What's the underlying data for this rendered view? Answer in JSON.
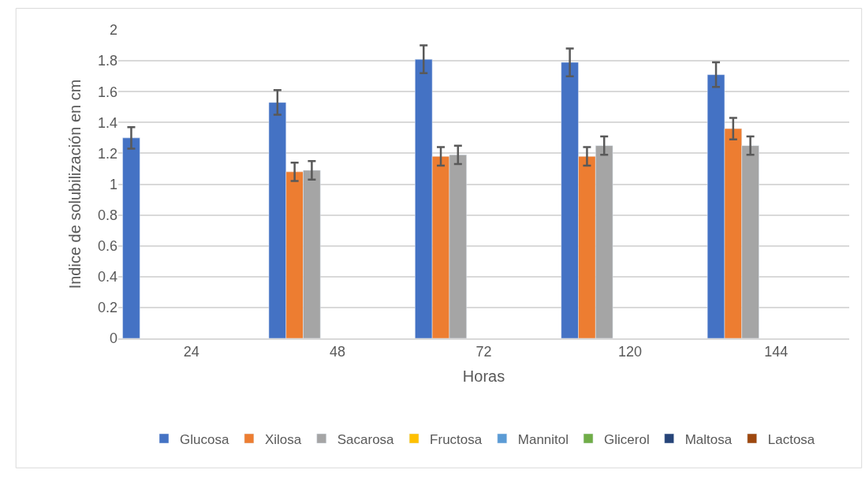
{
  "chart_data": {
    "type": "bar",
    "xlabel": "Horas",
    "ylabel": "Indice de solubilización en cm",
    "categories": [
      "24",
      "48",
      "72",
      "120",
      "144"
    ],
    "series": [
      {
        "name": "Glucosa",
        "color": "#4472c4",
        "values": [
          1.3,
          1.53,
          1.81,
          1.79,
          1.71
        ],
        "errors": [
          0.07,
          0.08,
          0.09,
          0.09,
          0.08
        ]
      },
      {
        "name": "Xilosa",
        "color": "#ed7d31",
        "values": [
          null,
          1.08,
          1.18,
          1.18,
          1.36
        ],
        "errors": [
          null,
          0.06,
          0.06,
          0.06,
          0.07
        ]
      },
      {
        "name": "Sacarosa",
        "color": "#a5a5a5",
        "values": [
          null,
          1.09,
          1.19,
          1.25,
          1.25
        ],
        "errors": [
          null,
          0.06,
          0.06,
          0.06,
          0.06
        ]
      },
      {
        "name": "Fructosa",
        "color": "#ffc000",
        "values": [
          null,
          null,
          null,
          null,
          null
        ]
      },
      {
        "name": "Mannitol",
        "color": "#5b9bd5",
        "values": [
          null,
          null,
          null,
          null,
          null
        ]
      },
      {
        "name": "Glicerol",
        "color": "#70ad47",
        "values": [
          null,
          null,
          null,
          null,
          null
        ]
      },
      {
        "name": "Maltosa",
        "color": "#264478",
        "values": [
          null,
          null,
          null,
          null,
          null
        ]
      },
      {
        "name": "Lactosa",
        "color": "#9e480e",
        "values": [
          null,
          null,
          null,
          null,
          null
        ]
      }
    ],
    "ylim": [
      0,
      2
    ],
    "yticks": [
      0,
      0.2,
      0.4,
      0.6,
      0.8,
      1,
      1.2,
      1.4,
      1.6,
      1.8,
      2
    ],
    "grid": "y",
    "legend": "bottom"
  }
}
